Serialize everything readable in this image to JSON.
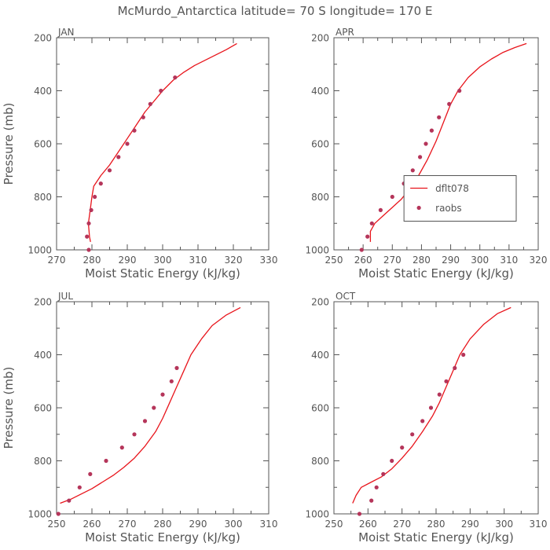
{
  "figure": {
    "title": "McMurdo_Antarctica  latitude= 70 S longitude= 170 E",
    "colors": {
      "model": "#e8141b",
      "obs": "#b5355a",
      "axis": "#555555"
    }
  },
  "chart_data": [
    {
      "type": "line",
      "panel": "JAN",
      "xlabel": "Moist Static Energy (kJ/kg)",
      "ylabel": "Pressure (mb)",
      "xlim": [
        270,
        330
      ],
      "ylim": [
        1000,
        200
      ],
      "y_scale": "linear",
      "legend": null,
      "series": [
        {
          "name": "dflt078",
          "kind": "line",
          "points": [
            [
              279.6,
              970
            ],
            [
              279.3,
              950
            ],
            [
              279.0,
              900
            ],
            [
              279.5,
              850
            ],
            [
              280.0,
              800
            ],
            [
              280.5,
              760
            ],
            [
              282.5,
              720
            ],
            [
              285,
              680
            ],
            [
              287.5,
              630
            ],
            [
              290,
              580
            ],
            [
              292.5,
              530
            ],
            [
              295,
              480
            ],
            [
              297.5,
              440
            ],
            [
              300,
              400
            ],
            [
              303,
              360
            ],
            [
              306,
              330
            ],
            [
              309,
              305
            ],
            [
              312,
              285
            ],
            [
              315,
              265
            ],
            [
              318,
              245
            ],
            [
              321,
              222
            ]
          ]
        },
        {
          "name": "raobs",
          "kind": "scatter",
          "points": [
            [
              279.1,
              1000
            ],
            [
              278.6,
              950
            ],
            [
              279.1,
              900
            ],
            [
              279.8,
              850
            ],
            [
              280.8,
              800
            ],
            [
              282.5,
              750
            ],
            [
              285,
              700
            ],
            [
              287.5,
              650
            ],
            [
              290,
              600
            ],
            [
              292,
              550
            ],
            [
              294.5,
              500
            ],
            [
              296.5,
              450
            ],
            [
              299.5,
              400
            ],
            [
              303.5,
              350
            ]
          ]
        }
      ]
    },
    {
      "type": "line",
      "panel": "APR",
      "xlabel": "Moist Static Energy (kJ/kg)",
      "ylabel": "",
      "xlim": [
        250,
        320
      ],
      "ylim": [
        1000,
        200
      ],
      "y_scale": "linear",
      "legend": "right-middle",
      "series": [
        {
          "name": "dflt078",
          "kind": "line",
          "points": [
            [
              262.5,
              970
            ],
            [
              262.5,
              930
            ],
            [
              264,
              900
            ],
            [
              267,
              870
            ],
            [
              270,
              840
            ],
            [
              273,
              810
            ],
            [
              276,
              770
            ],
            [
              279,
              720
            ],
            [
              282,
              660
            ],
            [
              285,
              590
            ],
            [
              287.5,
              520
            ],
            [
              290,
              450
            ],
            [
              292.5,
              400
            ],
            [
              296,
              350
            ],
            [
              300,
              310
            ],
            [
              304,
              280
            ],
            [
              308,
              255
            ],
            [
              312,
              237
            ],
            [
              316,
              222
            ]
          ]
        },
        {
          "name": "raobs",
          "kind": "scatter",
          "points": [
            [
              259.5,
              1000
            ],
            [
              261.5,
              950
            ],
            [
              263,
              900
            ],
            [
              266,
              850
            ],
            [
              270,
              800
            ],
            [
              274,
              750
            ],
            [
              277,
              700
            ],
            [
              279.5,
              650
            ],
            [
              281.5,
              600
            ],
            [
              283.5,
              550
            ],
            [
              286,
              500
            ],
            [
              289.5,
              450
            ],
            [
              293,
              400
            ]
          ]
        }
      ]
    },
    {
      "type": "line",
      "panel": "JUL",
      "xlabel": "Moist Static Energy (kJ/kg)",
      "ylabel": "Pressure (mb)",
      "xlim": [
        250,
        310
      ],
      "ylim": [
        1000,
        200
      ],
      "y_scale": "linear",
      "legend": null,
      "series": [
        {
          "name": "dflt078",
          "kind": "line",
          "points": [
            [
              251,
              960
            ],
            [
              254,
              945
            ],
            [
              257,
              925
            ],
            [
              260,
              905
            ],
            [
              263,
              880
            ],
            [
              266,
              855
            ],
            [
              269,
              825
            ],
            [
              272,
              790
            ],
            [
              275,
              745
            ],
            [
              278,
              690
            ],
            [
              280,
              640
            ],
            [
              282,
              580
            ],
            [
              284,
              520
            ],
            [
              286,
              460
            ],
            [
              288,
              400
            ],
            [
              291,
              340
            ],
            [
              294,
              290
            ],
            [
              298,
              250
            ],
            [
              302,
              222
            ]
          ]
        },
        {
          "name": "raobs",
          "kind": "scatter",
          "points": [
            [
              250.5,
              1000
            ],
            [
              253.5,
              950
            ],
            [
              256.5,
              900
            ],
            [
              259.5,
              850
            ],
            [
              264,
              800
            ],
            [
              268.5,
              750
            ],
            [
              272,
              700
            ],
            [
              275,
              650
            ],
            [
              277.5,
              600
            ],
            [
              280,
              550
            ],
            [
              282.5,
              500
            ],
            [
              284,
              450
            ]
          ]
        }
      ]
    },
    {
      "type": "line",
      "panel": "OCT",
      "xlabel": "Moist Static Energy (kJ/kg)",
      "ylabel": "",
      "xlim": [
        250,
        310
      ],
      "ylim": [
        1000,
        200
      ],
      "y_scale": "linear",
      "legend": null,
      "series": [
        {
          "name": "dflt078",
          "kind": "line",
          "points": [
            [
              255.5,
              960
            ],
            [
              256.5,
              930
            ],
            [
              258,
              900
            ],
            [
              261,
              880
            ],
            [
              264,
              860
            ],
            [
              267,
              830
            ],
            [
              270,
              790
            ],
            [
              273,
              745
            ],
            [
              276,
              690
            ],
            [
              279,
              630
            ],
            [
              281,
              580
            ],
            [
              283,
              520
            ],
            [
              285,
              460
            ],
            [
              287,
              400
            ],
            [
              290,
              340
            ],
            [
              294,
              285
            ],
            [
              298,
              245
            ],
            [
              302,
              222
            ]
          ]
        },
        {
          "name": "raobs",
          "kind": "scatter",
          "points": [
            [
              257.5,
              1000
            ],
            [
              261,
              950
            ],
            [
              262.5,
              900
            ],
            [
              264.5,
              850
            ],
            [
              267,
              800
            ],
            [
              270,
              750
            ],
            [
              273,
              700
            ],
            [
              276,
              650
            ],
            [
              278.5,
              600
            ],
            [
              281,
              550
            ],
            [
              283,
              500
            ],
            [
              285.5,
              450
            ],
            [
              288,
              400
            ]
          ]
        }
      ]
    }
  ]
}
